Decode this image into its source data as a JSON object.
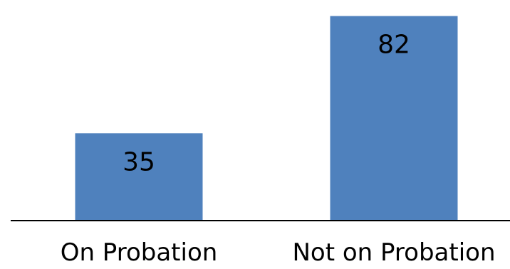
{
  "chart_data": {
    "type": "bar",
    "categories": [
      "On Probation",
      "Not on Probation"
    ],
    "values": [
      35,
      82
    ],
    "title": "",
    "xlabel": "",
    "ylabel": "",
    "ylim": [
      0,
      85
    ],
    "grid": false,
    "legend": "none",
    "data_labels": "inside-top"
  },
  "colors": {
    "bar": "#4f81bd",
    "axis": "#000000",
    "label_text": "#000000",
    "background": "#ffffff"
  }
}
